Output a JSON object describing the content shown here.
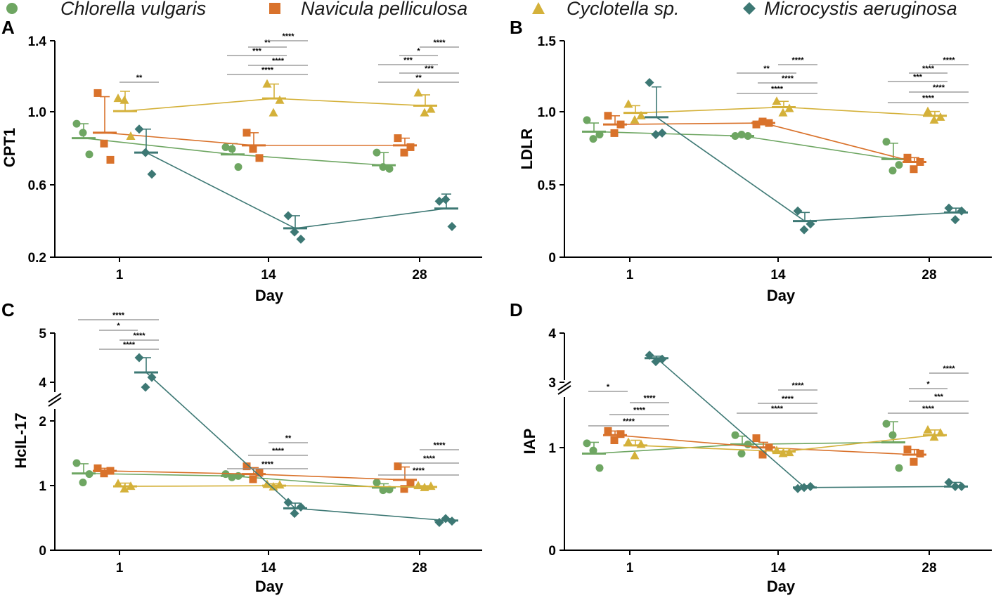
{
  "legend": [
    {
      "name": "Chlorella vulgaris",
      "color": "#6ea662",
      "marker": "circle"
    },
    {
      "name": "Navicula pelliculosa",
      "color": "#d9722b",
      "marker": "square"
    },
    {
      "name": "Cyclotella sp.",
      "color": "#d4b13a",
      "marker": "triangle"
    },
    {
      "name": "Microcystis aeruginosa",
      "color": "#3d7874",
      "marker": "diamond"
    }
  ],
  "chart_data": [
    {
      "panel": "A",
      "type": "scatter",
      "xlabel": "Day",
      "ylabel": "CPT1",
      "categories": [
        "1",
        "14",
        "28"
      ],
      "ylim": [
        0.2,
        1.4
      ],
      "yticks": [
        "0.2",
        "0.6",
        "1.0",
        "1.4"
      ],
      "break": null,
      "series": [
        {
          "name": "Chlorella vulgaris",
          "means": [
            0.86,
            0.77,
            0.71
          ],
          "sd": [
            0.08,
            0.06,
            0.07
          ],
          "points": [
            [
              0.94,
              0.89,
              0.77
            ],
            [
              0.81,
              0.8,
              0.7
            ],
            [
              0.78,
              0.7,
              0.69
            ]
          ]
        },
        {
          "name": "Navicula pelliculosa",
          "means": [
            0.89,
            0.82,
            0.82
          ],
          "sd": [
            0.2,
            0.07,
            0.04
          ],
          "points": [
            [
              1.11,
              0.83,
              0.74
            ],
            [
              0.89,
              0.8,
              0.75
            ],
            [
              0.86,
              0.78,
              0.81
            ]
          ]
        },
        {
          "name": "Cyclotella sp.",
          "means": [
            1.01,
            1.08,
            1.04
          ],
          "sd": [
            0.11,
            0.08,
            0.06
          ],
          "points": [
            [
              1.08,
              1.07,
              0.87
            ],
            [
              1.16,
              1.0,
              1.07
            ],
            [
              1.11,
              1.0,
              1.02
            ]
          ]
        },
        {
          "name": "Microcystis aeruginosa",
          "means": [
            0.78,
            0.36,
            0.47
          ],
          "sd": [
            0.13,
            0.07,
            0.08
          ],
          "points": [
            [
              0.91,
              0.78,
              0.66
            ],
            [
              0.43,
              0.34,
              0.3
            ],
            [
              0.51,
              0.52,
              0.37
            ]
          ]
        }
      ],
      "brackets": [
        {
          "day": 0,
          "from": 2,
          "to": 3,
          "level": 0,
          "label": "**"
        },
        {
          "day": 1,
          "from": 0,
          "to": 3,
          "level": 3,
          "label": "****"
        },
        {
          "day": 1,
          "from": 1,
          "to": 3,
          "level": 2,
          "label": "****"
        },
        {
          "day": 1,
          "from": 0,
          "to": 2,
          "level": 1,
          "label": "***"
        },
        {
          "day": 1,
          "from": 1,
          "to": 2,
          "level": 0.5,
          "label": "**"
        },
        {
          "day": 1,
          "from": 2,
          "to": 3,
          "level": 0,
          "label": "****"
        },
        {
          "day": 2,
          "from": 0,
          "to": 3,
          "level": 3,
          "label": "**"
        },
        {
          "day": 2,
          "from": 1,
          "to": 3,
          "level": 2,
          "label": "***"
        },
        {
          "day": 2,
          "from": 0,
          "to": 2,
          "level": 1,
          "label": "***"
        },
        {
          "day": 2,
          "from": 1,
          "to": 2,
          "level": 0.5,
          "label": "*"
        },
        {
          "day": 2,
          "from": 2,
          "to": 3,
          "level": 0,
          "label": "****"
        }
      ]
    },
    {
      "panel": "B",
      "type": "scatter",
      "xlabel": "Day",
      "ylabel": "LDLR",
      "categories": [
        "1",
        "14",
        "28"
      ],
      "ylim": [
        0,
        1.5
      ],
      "yticks": [
        "0",
        "0.5",
        "1.0",
        "1.5"
      ],
      "break": null,
      "series": [
        {
          "name": "Chlorella vulgaris",
          "means": [
            0.87,
            0.84,
            0.68
          ],
          "sd": [
            0.06,
            0.01,
            0.11
          ],
          "points": [
            [
              0.95,
              0.82,
              0.85
            ],
            [
              0.84,
              0.85,
              0.84
            ],
            [
              0.8,
              0.6,
              0.64
            ]
          ]
        },
        {
          "name": "Navicula pelliculosa",
          "means": [
            0.92,
            0.93,
            0.66
          ],
          "sd": [
            0.06,
            0.02,
            0.03
          ],
          "points": [
            [
              0.98,
              0.86,
              0.92
            ],
            [
              0.92,
              0.94,
              0.93
            ],
            [
              0.69,
              0.61,
              0.66
            ]
          ]
        },
        {
          "name": "Cyclotella sp.",
          "means": [
            1.0,
            1.04,
            0.98
          ],
          "sd": [
            0.05,
            0.04,
            0.03
          ],
          "points": [
            [
              1.06,
              0.95,
              0.98
            ],
            [
              1.08,
              1.0,
              1.03
            ],
            [
              1.01,
              0.95,
              0.97
            ]
          ]
        },
        {
          "name": "Microcystis aeruginosa",
          "means": [
            0.97,
            0.25,
            0.31
          ],
          "sd": [
            0.21,
            0.06,
            0.03
          ],
          "points": [
            [
              1.21,
              0.85,
              0.86
            ],
            [
              0.32,
              0.19,
              0.23
            ],
            [
              0.34,
              0.26,
              0.32
            ]
          ]
        }
      ],
      "brackets": [
        {
          "day": 1,
          "from": 0,
          "to": 3,
          "level": 3,
          "label": "****"
        },
        {
          "day": 1,
          "from": 1,
          "to": 3,
          "level": 2,
          "label": "****"
        },
        {
          "day": 1,
          "from": 0,
          "to": 2,
          "level": 1,
          "label": "**"
        },
        {
          "day": 1,
          "from": 2,
          "to": 3,
          "level": 0,
          "label": "****"
        },
        {
          "day": 2,
          "from": 0,
          "to": 3,
          "level": 4,
          "label": "****"
        },
        {
          "day": 2,
          "from": 1,
          "to": 3,
          "level": 3,
          "label": "****"
        },
        {
          "day": 2,
          "from": 0,
          "to": 2,
          "level": 2,
          "label": "***"
        },
        {
          "day": 2,
          "from": 1,
          "to": 2,
          "level": 1,
          "label": "****"
        },
        {
          "day": 2,
          "from": 2,
          "to": 3,
          "level": 0,
          "label": "****"
        }
      ]
    },
    {
      "panel": "C",
      "type": "scatter",
      "xlabel": "Day",
      "ylabel": "HcIL-17",
      "categories": [
        "1",
        "14",
        "28"
      ],
      "ylim": [
        0,
        5
      ],
      "yticks": [
        "0",
        "1",
        "2",
        "4",
        "5"
      ],
      "break": [
        2.2,
        3.8
      ],
      "series": [
        {
          "name": "Chlorella vulgaris",
          "means": [
            1.19,
            1.15,
            0.97
          ],
          "sd": [
            0.15,
            0.03,
            0.06
          ],
          "points": [
            [
              1.35,
              1.05,
              1.18
            ],
            [
              1.18,
              1.13,
              1.15
            ],
            [
              1.05,
              0.93,
              0.94
            ]
          ]
        },
        {
          "name": "Navicula pelliculosa",
          "means": [
            1.23,
            1.18,
            1.09
          ],
          "sd": [
            0.04,
            0.1,
            0.2
          ],
          "points": [
            [
              1.27,
              1.19,
              1.23
            ],
            [
              1.3,
              1.1,
              1.2
            ],
            [
              1.3,
              0.95,
              1.03
            ]
          ]
        },
        {
          "name": "Cyclotella sp.",
          "means": [
            0.99,
            1.0,
            0.98
          ],
          "sd": [
            0.05,
            0.03,
            0.02
          ],
          "points": [
            [
              1.03,
              0.95,
              0.99
            ],
            [
              1.02,
              0.98,
              1.01
            ],
            [
              1.0,
              0.97,
              0.99
            ]
          ]
        },
        {
          "name": "Microcystis aeruginosa",
          "means": [
            4.2,
            0.65,
            0.46
          ],
          "sd": [
            0.3,
            0.08,
            0.03
          ],
          "points": [
            [
              4.5,
              3.9,
              4.1
            ],
            [
              0.74,
              0.57,
              0.67
            ],
            [
              0.43,
              0.49,
              0.45
            ]
          ]
        }
      ],
      "brackets": [
        {
          "day": 0,
          "from": 0,
          "to": 3,
          "level": 3,
          "label": "****"
        },
        {
          "day": 0,
          "from": 1,
          "to": 3,
          "level": 2,
          "label": "****"
        },
        {
          "day": 0,
          "from": 2,
          "to": 3,
          "level": 1,
          "label": "****"
        },
        {
          "day": 0,
          "from": 1,
          "to": 2,
          "level": 0,
          "label": "*"
        },
        {
          "day": 1,
          "from": 0,
          "to": 3,
          "level": 2,
          "label": "****"
        },
        {
          "day": 1,
          "from": 1,
          "to": 3,
          "level": 1,
          "label": "****"
        },
        {
          "day": 1,
          "from": 2,
          "to": 3,
          "level": 0,
          "label": "**"
        },
        {
          "day": 2,
          "from": 0,
          "to": 3,
          "level": 2,
          "label": "****"
        },
        {
          "day": 2,
          "from": 1,
          "to": 3,
          "level": 1,
          "label": "****"
        },
        {
          "day": 2,
          "from": 2,
          "to": 3,
          "level": 0,
          "label": "****"
        }
      ]
    },
    {
      "panel": "D",
      "type": "scatter",
      "xlabel": "Day",
      "ylabel": "IAP",
      "categories": [
        "1",
        "14",
        "28"
      ],
      "ylim": [
        0,
        4
      ],
      "yticks": [
        "0",
        "1",
        "3",
        "4"
      ],
      "break": [
        1.6,
        2.8
      ],
      "series": [
        {
          "name": "Chlorella vulgaris",
          "means": [
            0.94,
            1.03,
            1.05
          ],
          "sd": [
            0.11,
            0.08,
            0.2
          ],
          "points": [
            [
              1.04,
              0.97,
              0.8
            ],
            [
              1.12,
              0.94,
              1.03
            ],
            [
              1.23,
              1.12,
              0.8
            ]
          ]
        },
        {
          "name": "Navicula pelliculosa",
          "means": [
            1.12,
            1.0,
            0.93
          ],
          "sd": [
            0.04,
            0.05,
            0.05
          ],
          "points": [
            [
              1.16,
              1.07,
              1.13
            ],
            [
              1.09,
              0.93,
              1.0
            ],
            [
              0.98,
              0.86,
              0.94
            ]
          ]
        },
        {
          "name": "Cyclotella sp.",
          "means": [
            1.02,
            0.96,
            1.12
          ],
          "sd": [
            0.05,
            0.03,
            0.05
          ],
          "points": [
            [
              1.05,
              0.92,
              1.03
            ],
            [
              0.97,
              0.94,
              0.95
            ],
            [
              1.17,
              1.1,
              1.14
            ]
          ]
        },
        {
          "name": "Microcystis aeruginosa",
          "means": [
            3.49,
            0.61,
            0.62
          ],
          "sd": [
            0.04,
            0.02,
            0.04
          ],
          "points": [
            [
              3.55,
              3.42,
              3.47
            ],
            [
              0.6,
              0.61,
              0.62
            ],
            [
              0.66,
              0.62,
              0.62
            ]
          ]
        }
      ],
      "brackets": [
        {
          "day": 0,
          "from": 0,
          "to": 3,
          "level": 3,
          "label": "****"
        },
        {
          "day": 0,
          "from": 1,
          "to": 3,
          "level": 2,
          "label": "****"
        },
        {
          "day": 0,
          "from": 2,
          "to": 3,
          "level": 1,
          "label": "****"
        },
        {
          "day": 0,
          "from": 0,
          "to": 1,
          "level": 0,
          "label": "*"
        },
        {
          "day": 1,
          "from": 0,
          "to": 3,
          "level": 2,
          "label": "****"
        },
        {
          "day": 1,
          "from": 1,
          "to": 3,
          "level": 1,
          "label": "****"
        },
        {
          "day": 1,
          "from": 2,
          "to": 3,
          "level": 0,
          "label": "****"
        },
        {
          "day": 2,
          "from": 0,
          "to": 3,
          "level": 3,
          "label": "****"
        },
        {
          "day": 2,
          "from": 1,
          "to": 3,
          "level": 2,
          "label": "***"
        },
        {
          "day": 2,
          "from": 1,
          "to": 2,
          "level": 1,
          "label": "*"
        },
        {
          "day": 2,
          "from": 2,
          "to": 3,
          "level": 0,
          "label": "****"
        }
      ]
    }
  ]
}
